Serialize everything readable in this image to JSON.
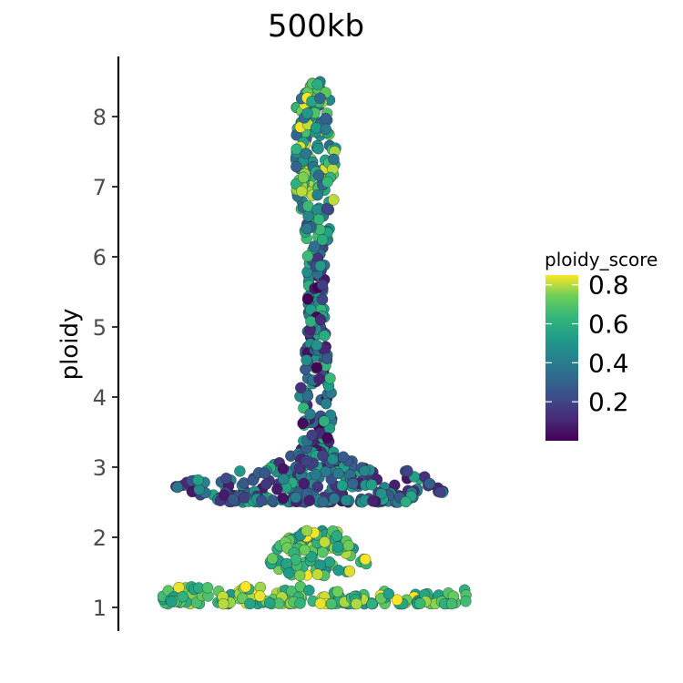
{
  "chart_data": {
    "type": "scatter",
    "subtype": "beeswarm",
    "title": "500kb",
    "xlabel": "",
    "ylabel": "ploidy",
    "ylim": [
      0.7,
      8.9
    ],
    "yticks": [
      1,
      2,
      3,
      4,
      5,
      6,
      7,
      8
    ],
    "yticklabels": [
      "1",
      "2",
      "3",
      "4",
      "5",
      "6",
      "7",
      "8"
    ],
    "grid": false,
    "color_variable": "ploidy_score",
    "colorscale": "viridis",
    "color_range": [
      0.0,
      0.85
    ],
    "colorbar_ticks": [
      0.2,
      0.4,
      0.6,
      0.8
    ],
    "colorbar_ticklabels": [
      "0.2",
      "0.4",
      "0.6",
      "0.8"
    ],
    "legend_position": "right",
    "point_groups": [
      {
        "ploidy_center": 1.1,
        "ploidy_min": 1.05,
        "ploidy_max": 1.3,
        "count": 170,
        "score_min": 0.5,
        "score_max": 0.85
      },
      {
        "ploidy_center": 1.6,
        "ploidy_min": 1.45,
        "ploidy_max": 2.1,
        "count": 110,
        "score_min": 0.45,
        "score_max": 0.85
      },
      {
        "ploidy_center": 2.7,
        "ploidy_min": 2.5,
        "ploidy_max": 3.35,
        "count": 330,
        "score_min": 0.05,
        "score_max": 0.6
      },
      {
        "ploidy_center": 5.0,
        "ploidy_min": 3.35,
        "ploidy_max": 6.8,
        "count": 190,
        "score_min": 0.0,
        "score_max": 0.65
      },
      {
        "ploidy_center": 7.6,
        "ploidy_min": 6.8,
        "ploidy_max": 8.5,
        "count": 140,
        "score_min": 0.3,
        "score_max": 0.85
      }
    ]
  }
}
